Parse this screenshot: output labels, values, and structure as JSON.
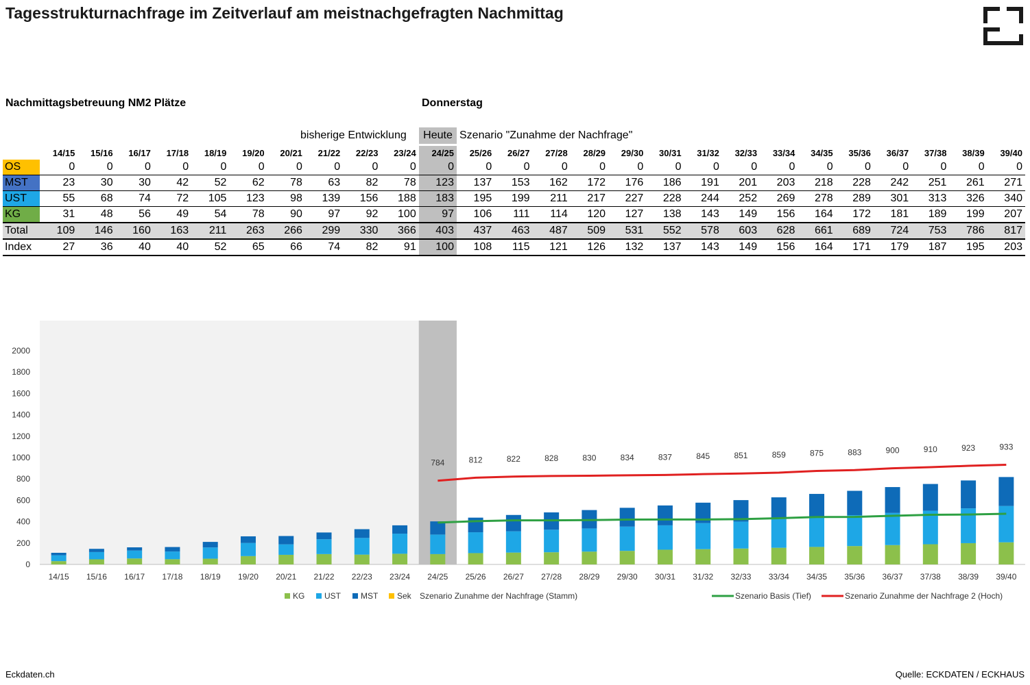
{
  "title": "Tagesstrukturnachfrage im Zeitverlauf am meistnachgefragten Nachmittag",
  "subtitle_left": "Nachmittagsbetreuung NM2 Plätze",
  "subtitle_right": "Donnerstag",
  "header_labels": {
    "history": "bisherige Entwicklung",
    "today": "Heute",
    "scenario": "Szenario \"Zunahme der Nachfrage\""
  },
  "logo": {
    "icon": "eckhaus-logo-icon",
    "color": "#1a1a1a"
  },
  "footer": {
    "left": "Eckdaten.ch",
    "right": "Quelle: ECKDATEN / ECKHAUS"
  },
  "table": {
    "years": [
      "14/15",
      "15/16",
      "16/17",
      "17/18",
      "18/19",
      "19/20",
      "20/21",
      "21/22",
      "22/23",
      "23/24",
      "24/25",
      "25/26",
      "26/27",
      "27/28",
      "28/29",
      "29/30",
      "30/31",
      "31/32",
      "32/33",
      "33/34",
      "34/35",
      "35/36",
      "36/37",
      "37/38",
      "38/39",
      "39/40"
    ],
    "rows": [
      {
        "label": "OS",
        "color": "#ffc000",
        "values": [
          0,
          0,
          0,
          0,
          0,
          0,
          0,
          0,
          0,
          0,
          0,
          0,
          0,
          0,
          0,
          0,
          0,
          0,
          0,
          0,
          0,
          0,
          0,
          0,
          0,
          0
        ]
      },
      {
        "label": "MST",
        "color": "#4472c4",
        "values": [
          23,
          30,
          30,
          42,
          52,
          62,
          78,
          63,
          82,
          78,
          123,
          137,
          153,
          162,
          172,
          176,
          186,
          191,
          201,
          203,
          218,
          228,
          242,
          251,
          261,
          271
        ]
      },
      {
        "label": "UST",
        "color": "#1ea7e6",
        "values": [
          55,
          68,
          74,
          72,
          105,
          123,
          98,
          139,
          156,
          188,
          183,
          195,
          199,
          211,
          217,
          227,
          228,
          244,
          252,
          269,
          278,
          289,
          301,
          313,
          326,
          340
        ]
      },
      {
        "label": "KG",
        "color": "#70ad47",
        "values": [
          31,
          48,
          56,
          49,
          54,
          78,
          90,
          97,
          92,
          100,
          97,
          106,
          111,
          114,
          120,
          127,
          138,
          143,
          149,
          156,
          164,
          172,
          181,
          189,
          199,
          207
        ]
      },
      {
        "label": "Total",
        "values": [
          109,
          146,
          160,
          163,
          211,
          263,
          266,
          299,
          330,
          366,
          403,
          437,
          463,
          487,
          509,
          531,
          552,
          578,
          603,
          628,
          661,
          689,
          724,
          753,
          786,
          817
        ]
      },
      {
        "label": "Index",
        "values": [
          27,
          36,
          40,
          40,
          52,
          65,
          66,
          74,
          82,
          91,
          100,
          108,
          115,
          121,
          126,
          132,
          137,
          143,
          149,
          156,
          164,
          171,
          179,
          187,
          195,
          203
        ]
      }
    ]
  },
  "chart_data": {
    "type": "bar",
    "stacked": true,
    "categories": [
      "14/15",
      "15/16",
      "16/17",
      "17/18",
      "18/19",
      "19/20",
      "20/21",
      "21/22",
      "22/23",
      "23/24",
      "24/25",
      "25/26",
      "26/27",
      "27/28",
      "28/29",
      "29/30",
      "30/31",
      "31/32",
      "32/33",
      "33/34",
      "34/35",
      "35/36",
      "36/37",
      "37/38",
      "38/39",
      "39/40"
    ],
    "ylim": [
      0,
      2000
    ],
    "yticks": [
      0,
      200,
      400,
      600,
      800,
      1000,
      1200,
      1400,
      1600,
      1800,
      2000
    ],
    "series": [
      {
        "name": "KG",
        "color": "#8cc04b",
        "values": [
          31,
          48,
          56,
          49,
          54,
          78,
          90,
          97,
          92,
          100,
          97,
          106,
          111,
          114,
          120,
          127,
          138,
          143,
          149,
          156,
          164,
          172,
          181,
          189,
          199,
          207
        ]
      },
      {
        "name": "UST",
        "color": "#1ea7e6",
        "values": [
          55,
          68,
          74,
          72,
          105,
          123,
          98,
          139,
          156,
          188,
          183,
          195,
          199,
          211,
          217,
          227,
          228,
          244,
          252,
          269,
          278,
          289,
          301,
          313,
          326,
          340
        ]
      },
      {
        "name": "MST",
        "color": "#0e6bb8",
        "values": [
          23,
          30,
          30,
          42,
          52,
          62,
          78,
          63,
          82,
          78,
          123,
          137,
          153,
          162,
          172,
          176,
          186,
          191,
          201,
          203,
          218,
          228,
          242,
          251,
          261,
          271
        ]
      },
      {
        "name": "Sek",
        "color": "#ffc000",
        "values": [
          0,
          0,
          0,
          0,
          0,
          0,
          0,
          0,
          0,
          0,
          0,
          0,
          0,
          0,
          0,
          0,
          0,
          0,
          0,
          0,
          0,
          0,
          0,
          0,
          0,
          0
        ]
      }
    ],
    "legend_bars_title": "Szenario Zunahme der Nachfrage (Stamm)",
    "lines": [
      {
        "name": "Szenario Basis (Tief)",
        "color": "#2ea043",
        "start_index": 10,
        "values": [
          392,
          405,
          413,
          413,
          415,
          420,
          421,
          421,
          424,
          433,
          444,
          445,
          455,
          465,
          467,
          474
        ]
      },
      {
        "name": "Szenario Zunahme der Nachfrage 2 (Hoch)",
        "color": "#e02020",
        "start_index": 10,
        "labels_shown": true,
        "values": [
          784,
          812,
          822,
          828,
          830,
          834,
          837,
          845,
          851,
          859,
          875,
          883,
          900,
          910,
          923,
          933
        ]
      }
    ],
    "history_end_index": 9,
    "today_index": 10,
    "history_background": "#f2f2f2",
    "today_background": "#bfbfbf",
    "grid": false,
    "legend_position": "bottom"
  }
}
